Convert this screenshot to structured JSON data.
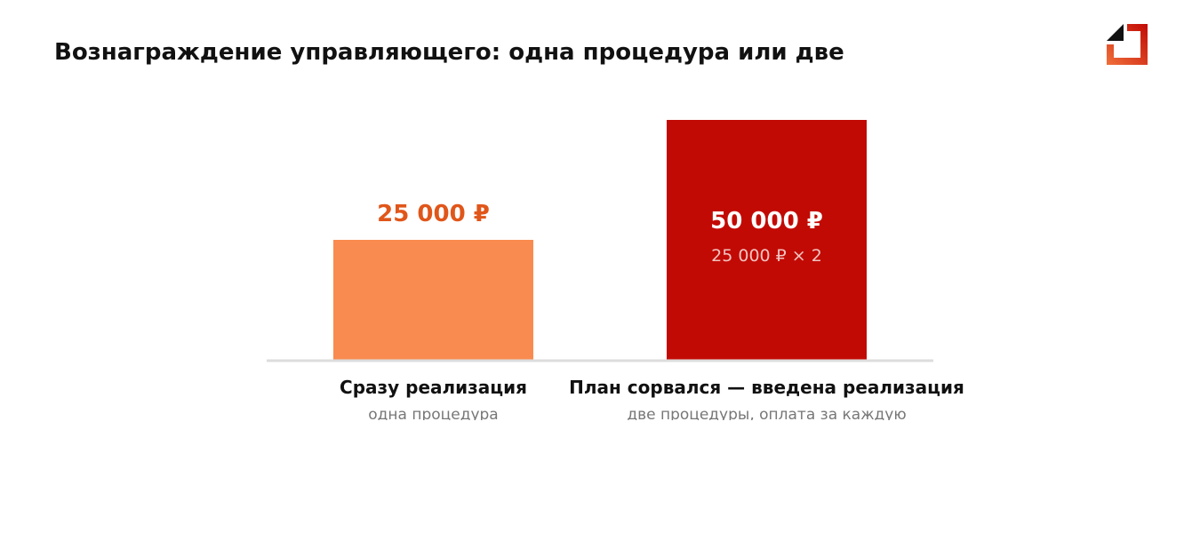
{
  "title": "Вознаграждение управляющего: одна процедура или две",
  "colors": {
    "bar_single": "#F98B50",
    "bar_double": "#C20A05",
    "value_single": "#E0561A",
    "axis": "#DDDDDD",
    "logo_orange": "#F0703A",
    "logo_red": "#C20A05",
    "logo_dark": "#111111"
  },
  "logo_icon": "bankruptcy-house-logo",
  "chart_data": {
    "type": "bar",
    "categories": [
      "Сразу реализация",
      "План сорвался — введена реализация"
    ],
    "subcategories": [
      "одна процедура",
      "две процедуры, оплата за каждую"
    ],
    "values": [
      25000,
      50000
    ],
    "value_labels": [
      "25 000 ₽",
      "50 000 ₽"
    ],
    "value_notes": [
      "",
      "25 000 ₽ × 2"
    ],
    "ylim": [
      0,
      50000
    ],
    "grid": false,
    "legend": "none"
  }
}
